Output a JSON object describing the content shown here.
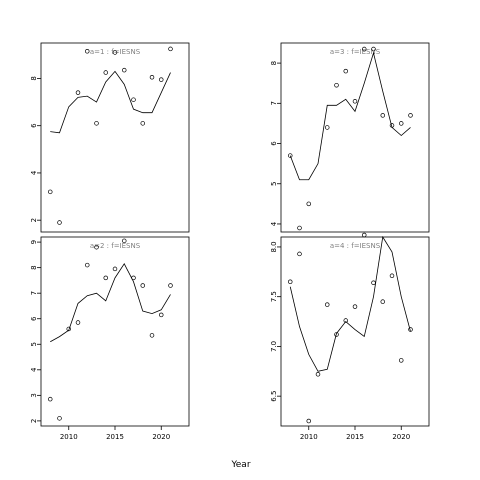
{
  "chart_data": {
    "type": "line",
    "xlabel": "Year",
    "panels": [
      {
        "title": "a=1 : f=IESNS",
        "xlim": [
          2007,
          2023
        ],
        "ylim": [
          1.5,
          9.5
        ],
        "yticks": [
          2,
          4,
          6,
          8
        ],
        "show_xaxis": false,
        "points": {
          "x": [
            2008,
            2009,
            2011,
            2012,
            2013,
            2014,
            2015,
            2016,
            2017,
            2018,
            2019,
            2020,
            2021
          ],
          "y": [
            3.2,
            1.9,
            7.4,
            9.15,
            6.1,
            8.25,
            9.1,
            8.35,
            7.1,
            6.1,
            8.05,
            7.95,
            9.25
          ]
        },
        "fit": {
          "x": [
            2008,
            2009,
            2010,
            2011,
            2012,
            2013,
            2014,
            2015,
            2016,
            2017,
            2018,
            2019,
            2021
          ],
          "y": [
            5.75,
            5.7,
            6.8,
            7.2,
            7.25,
            7.0,
            7.85,
            8.3,
            7.75,
            6.7,
            6.55,
            6.55,
            8.25
          ]
        }
      },
      {
        "title": "a=3 : f=IESNS",
        "xlim": [
          2007,
          2023
        ],
        "ylim": [
          3.8,
          8.5
        ],
        "yticks": [
          4,
          5,
          6,
          7,
          8
        ],
        "show_xaxis": false,
        "points": {
          "x": [
            2008,
            2009,
            2010,
            2012,
            2013,
            2014,
            2015,
            2016,
            2017,
            2018,
            2019,
            2020,
            2021
          ],
          "y": [
            5.7,
            3.9,
            4.5,
            6.4,
            7.45,
            7.8,
            7.05,
            8.35,
            8.35,
            6.7,
            6.45,
            6.5,
            6.7
          ]
        },
        "fit": {
          "x": [
            2008,
            2009,
            2010,
            2011,
            2012,
            2013,
            2014,
            2015,
            2016,
            2017,
            2018,
            2019,
            2020,
            2021
          ],
          "y": [
            5.7,
            5.1,
            5.1,
            5.5,
            6.95,
            6.95,
            7.1,
            6.8,
            7.5,
            8.25,
            7.3,
            6.4,
            6.2,
            6.4
          ]
        }
      },
      {
        "title": "a=2 : f=IESNS",
        "xlim": [
          2007,
          2023
        ],
        "ylim": [
          1.8,
          9.2
        ],
        "yticks": [
          2,
          3,
          4,
          5,
          6,
          7,
          8,
          9
        ],
        "show_xaxis": true,
        "xticks": [
          2010,
          2015,
          2020
        ],
        "points": {
          "x": [
            2008,
            2009,
            2010,
            2011,
            2012,
            2013,
            2014,
            2015,
            2016,
            2017,
            2018,
            2019,
            2020,
            2021
          ],
          "y": [
            2.85,
            2.1,
            5.6,
            5.85,
            8.1,
            8.8,
            7.6,
            7.95,
            9.05,
            7.6,
            7.3,
            5.35,
            6.15,
            7.3
          ]
        },
        "fit": {
          "x": [
            2008,
            2009,
            2010,
            2011,
            2012,
            2013,
            2014,
            2015,
            2016,
            2017,
            2018,
            2019,
            2020,
            2021
          ],
          "y": [
            5.1,
            5.3,
            5.55,
            6.6,
            6.9,
            7.0,
            6.7,
            7.6,
            8.15,
            7.45,
            6.3,
            6.2,
            6.35,
            6.95
          ]
        }
      },
      {
        "title": "a=4 : f=IESNS",
        "xlim": [
          2007,
          2023
        ],
        "ylim": [
          6.2,
          8.1
        ],
        "yticks": [
          6.5,
          7.0,
          7.5,
          8.0
        ],
        "show_xaxis": true,
        "xticks": [
          2010,
          2015,
          2020
        ],
        "points": {
          "x": [
            2008,
            2009,
            2010,
            2011,
            2012,
            2013,
            2014,
            2015,
            2016,
            2017,
            2018,
            2019,
            2020,
            2021
          ],
          "y": [
            7.65,
            7.93,
            6.25,
            6.72,
            7.42,
            7.12,
            7.26,
            7.4,
            8.12,
            7.64,
            7.45,
            7.71,
            6.86,
            7.17
          ]
        },
        "fit": {
          "x": [
            2008,
            2009,
            2010,
            2011,
            2012,
            2013,
            2014,
            2015,
            2016,
            2017,
            2018,
            2019,
            2020,
            2021
          ],
          "y": [
            7.6,
            7.2,
            6.92,
            6.75,
            6.77,
            7.13,
            7.25,
            7.17,
            7.1,
            7.5,
            8.1,
            7.95,
            7.5,
            7.15
          ]
        }
      }
    ]
  }
}
